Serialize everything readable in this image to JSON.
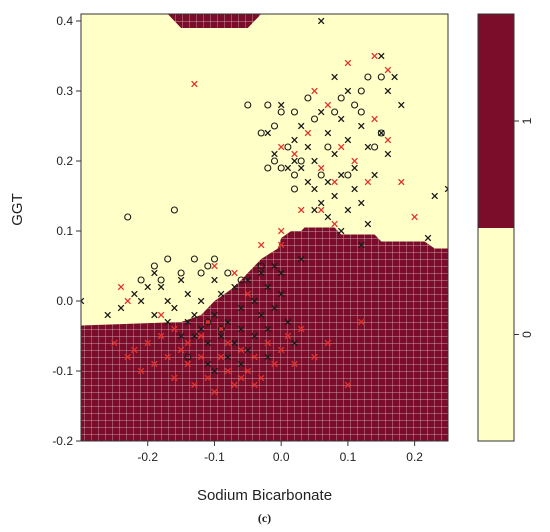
{
  "caption": "(c)",
  "colors": {
    "class_1_region": "#7b0d2a",
    "class_0_region": "#ffffc8",
    "grid_line": "#ffffff",
    "marker_black": "#1a1a1a",
    "marker_red": "#e4322b"
  },
  "chart_data": {
    "type": "scatter",
    "subtype": "decision-boundary",
    "xlabel": "Sodium Bicarbonate",
    "ylabel": "GGT",
    "xlim": [
      -0.3,
      0.25
    ],
    "ylim": [
      -0.2,
      0.41
    ],
    "x_ticks": [
      -0.2,
      -0.1,
      0.0,
      0.1,
      0.2
    ],
    "x_tick_labels": [
      "-0.2",
      "-0.1",
      "0.0",
      "0.1",
      "0.2"
    ],
    "y_ticks": [
      -0.2,
      -0.1,
      0.0,
      0.1,
      0.2,
      0.3,
      0.4
    ],
    "y_tick_labels": [
      "-0.2",
      "-0.1",
      "0.0",
      "0.1",
      "0.2",
      "0.3",
      "0.4"
    ],
    "legend": {
      "placement": "right",
      "labels": [
        "0",
        "1"
      ]
    },
    "regions": [
      {
        "class": "1",
        "polygon": [
          [
            -0.3,
            -0.2
          ],
          [
            0.25,
            -0.2
          ],
          [
            0.25,
            0.075
          ],
          [
            0.23,
            0.075
          ],
          [
            0.215,
            0.085
          ],
          [
            0.15,
            0.085
          ],
          [
            0.14,
            0.095
          ],
          [
            0.09,
            0.095
          ],
          [
            0.08,
            0.105
          ],
          [
            0.035,
            0.105
          ],
          [
            0.03,
            0.1
          ],
          [
            0.015,
            0.1
          ],
          [
            0.0,
            0.09
          ],
          [
            -0.005,
            0.075
          ],
          [
            -0.03,
            0.06
          ],
          [
            -0.05,
            0.04
          ],
          [
            -0.07,
            0.02
          ],
          [
            -0.1,
            0.0
          ],
          [
            -0.12,
            -0.02
          ],
          [
            -0.15,
            -0.03
          ],
          [
            -0.3,
            -0.035
          ]
        ]
      },
      {
        "class": "1",
        "polygon": [
          [
            -0.3,
            0.41
          ],
          [
            -0.3,
            0.415
          ],
          [
            0.06,
            0.415
          ],
          [
            0.06,
            0.41
          ],
          [
            -0.03,
            0.41
          ],
          [
            -0.05,
            0.39
          ],
          [
            -0.15,
            0.39
          ],
          [
            -0.17,
            0.41
          ],
          [
            -0.28,
            0.41
          ]
        ]
      }
    ],
    "series": [
      {
        "name": "",
        "marker": "x",
        "color": "#1a1a1a",
        "points": [
          [
            -0.3,
            0.0
          ],
          [
            -0.26,
            -0.02
          ],
          [
            -0.24,
            -0.01
          ],
          [
            -0.22,
            0.01
          ],
          [
            -0.21,
            0.0
          ],
          [
            -0.2,
            0.02
          ],
          [
            -0.19,
            0.04
          ],
          [
            -0.18,
            0.02
          ],
          [
            -0.17,
            0.0
          ],
          [
            -0.16,
            -0.01
          ],
          [
            -0.15,
            0.03
          ],
          [
            -0.14,
            -0.03
          ],
          [
            -0.13,
            -0.05
          ],
          [
            -0.12,
            -0.04
          ],
          [
            -0.11,
            -0.06
          ],
          [
            -0.1,
            -0.02
          ],
          [
            -0.09,
            0.01
          ],
          [
            -0.08,
            -0.03
          ],
          [
            -0.07,
            0.02
          ],
          [
            -0.06,
            -0.01
          ],
          [
            -0.05,
            0.03
          ],
          [
            -0.04,
            0.0
          ],
          [
            -0.03,
            0.04
          ],
          [
            -0.02,
            0.02
          ],
          [
            -0.01,
            0.05
          ],
          [
            0.0,
            0.04
          ],
          [
            -0.13,
            -0.02
          ],
          [
            -0.12,
            0.0
          ],
          [
            -0.1,
            0.03
          ],
          [
            -0.09,
            -0.05
          ],
          [
            -0.08,
            -0.08
          ],
          [
            -0.07,
            -0.06
          ],
          [
            -0.06,
            -0.04
          ],
          [
            -0.05,
            -0.07
          ],
          [
            -0.04,
            -0.05
          ],
          [
            -0.03,
            -0.02
          ],
          [
            -0.02,
            -0.04
          ],
          [
            -0.01,
            -0.01
          ],
          [
            0.0,
            0.01
          ],
          [
            0.01,
            -0.03
          ],
          [
            0.02,
            -0.06
          ],
          [
            0.03,
            0.06
          ],
          [
            -0.15,
            -0.05
          ],
          [
            -0.17,
            -0.03
          ],
          [
            -0.19,
            -0.02
          ],
          [
            -0.14,
            0.01
          ],
          [
            -0.11,
            -0.09
          ],
          [
            -0.1,
            -0.1
          ],
          [
            -0.06,
            -0.09
          ],
          [
            -0.02,
            -0.08
          ],
          [
            0.04,
            0.22
          ],
          [
            0.03,
            0.25
          ],
          [
            0.02,
            0.23
          ],
          [
            0.05,
            0.2
          ],
          [
            0.06,
            0.27
          ],
          [
            0.07,
            0.24
          ],
          [
            0.08,
            0.21
          ],
          [
            0.09,
            0.26
          ],
          [
            0.1,
            0.23
          ],
          [
            0.11,
            0.19
          ],
          [
            0.12,
            0.25
          ],
          [
            0.13,
            0.22
          ],
          [
            0.14,
            0.18
          ],
          [
            0.15,
            0.24
          ],
          [
            0.16,
            0.21
          ],
          [
            0.05,
            0.16
          ],
          [
            0.06,
            0.14
          ],
          [
            0.07,
            0.17
          ],
          [
            0.08,
            0.15
          ],
          [
            0.09,
            0.18
          ],
          [
            0.1,
            0.13
          ],
          [
            0.11,
            0.16
          ],
          [
            0.12,
            0.14
          ],
          [
            0.13,
            0.11
          ],
          [
            0.04,
            0.17
          ],
          [
            0.03,
            0.19
          ],
          [
            0.02,
            0.2
          ],
          [
            -0.01,
            0.21
          ],
          [
            -0.02,
            0.24
          ],
          [
            0.0,
            0.28
          ],
          [
            0.01,
            0.19
          ],
          [
            0.15,
            0.35
          ],
          [
            0.17,
            0.32
          ],
          [
            0.18,
            0.28
          ],
          [
            0.16,
            0.3
          ],
          [
            0.1,
            0.3
          ],
          [
            0.08,
            0.32
          ],
          [
            0.06,
            0.4
          ],
          [
            0.23,
            0.15
          ],
          [
            0.25,
            0.16
          ],
          [
            0.22,
            0.09
          ],
          [
            0.12,
            0.08
          ],
          [
            0.09,
            0.1
          ],
          [
            0.07,
            0.12
          ],
          [
            0.05,
            0.13
          ]
        ]
      },
      {
        "name": "",
        "marker": "x",
        "color": "#e4322b",
        "points": [
          [
            -0.25,
            -0.06
          ],
          [
            -0.23,
            -0.08
          ],
          [
            -0.22,
            -0.07
          ],
          [
            -0.21,
            -0.1
          ],
          [
            -0.2,
            -0.06
          ],
          [
            -0.19,
            -0.09
          ],
          [
            -0.18,
            -0.05
          ],
          [
            -0.17,
            -0.08
          ],
          [
            -0.16,
            -0.11
          ],
          [
            -0.15,
            -0.07
          ],
          [
            -0.14,
            -0.09
          ],
          [
            -0.13,
            -0.12
          ],
          [
            -0.12,
            -0.08
          ],
          [
            -0.11,
            -0.11
          ],
          [
            -0.1,
            -0.13
          ],
          [
            -0.09,
            -0.08
          ],
          [
            -0.08,
            -0.1
          ],
          [
            -0.07,
            -0.12
          ],
          [
            -0.06,
            -0.07
          ],
          [
            -0.05,
            -0.1
          ],
          [
            -0.04,
            -0.08
          ],
          [
            -0.03,
            -0.11
          ],
          [
            -0.02,
            -0.06
          ],
          [
            -0.01,
            -0.09
          ],
          [
            0.0,
            -0.07
          ],
          [
            0.01,
            -0.05
          ],
          [
            0.02,
            -0.09
          ],
          [
            0.03,
            -0.04
          ],
          [
            0.05,
            -0.08
          ],
          [
            0.07,
            -0.06
          ],
          [
            0.1,
            -0.12
          ],
          [
            0.12,
            -0.03
          ],
          [
            -0.24,
            0.02
          ],
          [
            -0.23,
            0.0
          ],
          [
            -0.18,
            -0.02
          ],
          [
            -0.1,
            0.05
          ],
          [
            -0.07,
            0.04
          ],
          [
            -0.05,
            0.01
          ],
          [
            0.0,
            0.08
          ],
          [
            -0.13,
            0.31
          ],
          [
            0.02,
            0.21
          ],
          [
            0.04,
            0.24
          ],
          [
            0.06,
            0.19
          ],
          [
            0.08,
            0.17
          ],
          [
            0.09,
            0.22
          ],
          [
            0.11,
            0.2
          ],
          [
            0.13,
            0.17
          ],
          [
            0.06,
            0.13
          ],
          [
            0.08,
            0.11
          ],
          [
            0.14,
            0.26
          ],
          [
            0.16,
            0.23
          ],
          [
            0.1,
            0.34
          ],
          [
            0.14,
            0.35
          ],
          [
            0.16,
            0.33
          ],
          [
            0.18,
            0.17
          ],
          [
            0.2,
            0.12
          ],
          [
            0.0,
            0.22
          ],
          [
            0.05,
            0.3
          ],
          [
            0.07,
            0.28
          ],
          [
            0.03,
            0.13
          ],
          [
            -0.09,
            -0.04
          ],
          [
            -0.08,
            -0.06
          ],
          [
            -0.06,
            -0.11
          ],
          [
            -0.04,
            -0.12
          ],
          [
            -0.14,
            -0.06
          ],
          [
            -0.16,
            -0.04
          ],
          [
            -0.12,
            -0.05
          ],
          [
            -0.11,
            -0.03
          ],
          [
            -0.03,
            0.08
          ],
          [
            0.0,
            0.1
          ]
        ]
      },
      {
        "name": "",
        "marker": "o",
        "color": "#1a1a1a",
        "points": [
          [
            -0.23,
            0.12
          ],
          [
            -0.21,
            0.03
          ],
          [
            -0.19,
            0.05
          ],
          [
            -0.18,
            0.03
          ],
          [
            -0.17,
            0.06
          ],
          [
            -0.16,
            0.13
          ],
          [
            -0.15,
            0.04
          ],
          [
            -0.13,
            0.06
          ],
          [
            -0.12,
            0.04
          ],
          [
            -0.11,
            0.05
          ],
          [
            -0.1,
            0.06
          ],
          [
            -0.08,
            0.04
          ],
          [
            -0.06,
            0.03
          ],
          [
            -0.03,
            0.05
          ],
          [
            -0.05,
            0.28
          ],
          [
            -0.03,
            0.24
          ],
          [
            -0.02,
            0.28
          ],
          [
            -0.01,
            0.25
          ],
          [
            0.0,
            0.27
          ],
          [
            0.01,
            0.22
          ],
          [
            0.02,
            0.27
          ],
          [
            0.03,
            0.2
          ],
          [
            0.04,
            0.29
          ],
          [
            0.05,
            0.26
          ],
          [
            0.06,
            0.18
          ],
          [
            0.07,
            0.22
          ],
          [
            0.08,
            0.27
          ],
          [
            0.1,
            0.18
          ],
          [
            0.12,
            0.27
          ],
          [
            0.14,
            0.22
          ],
          [
            0.15,
            0.32
          ],
          [
            0.15,
            0.24
          ],
          [
            0.13,
            0.32
          ],
          [
            0.12,
            0.3
          ],
          [
            0.11,
            0.28
          ],
          [
            0.09,
            0.29
          ],
          [
            -0.02,
            0.19
          ],
          [
            -0.01,
            0.2
          ],
          [
            0.0,
            0.19
          ],
          [
            0.02,
            0.16
          ],
          [
            -0.11,
            -0.03
          ],
          [
            -0.09,
            -0.04
          ],
          [
            -0.14,
            -0.08
          ],
          [
            0.02,
            0.18
          ]
        ]
      }
    ]
  }
}
